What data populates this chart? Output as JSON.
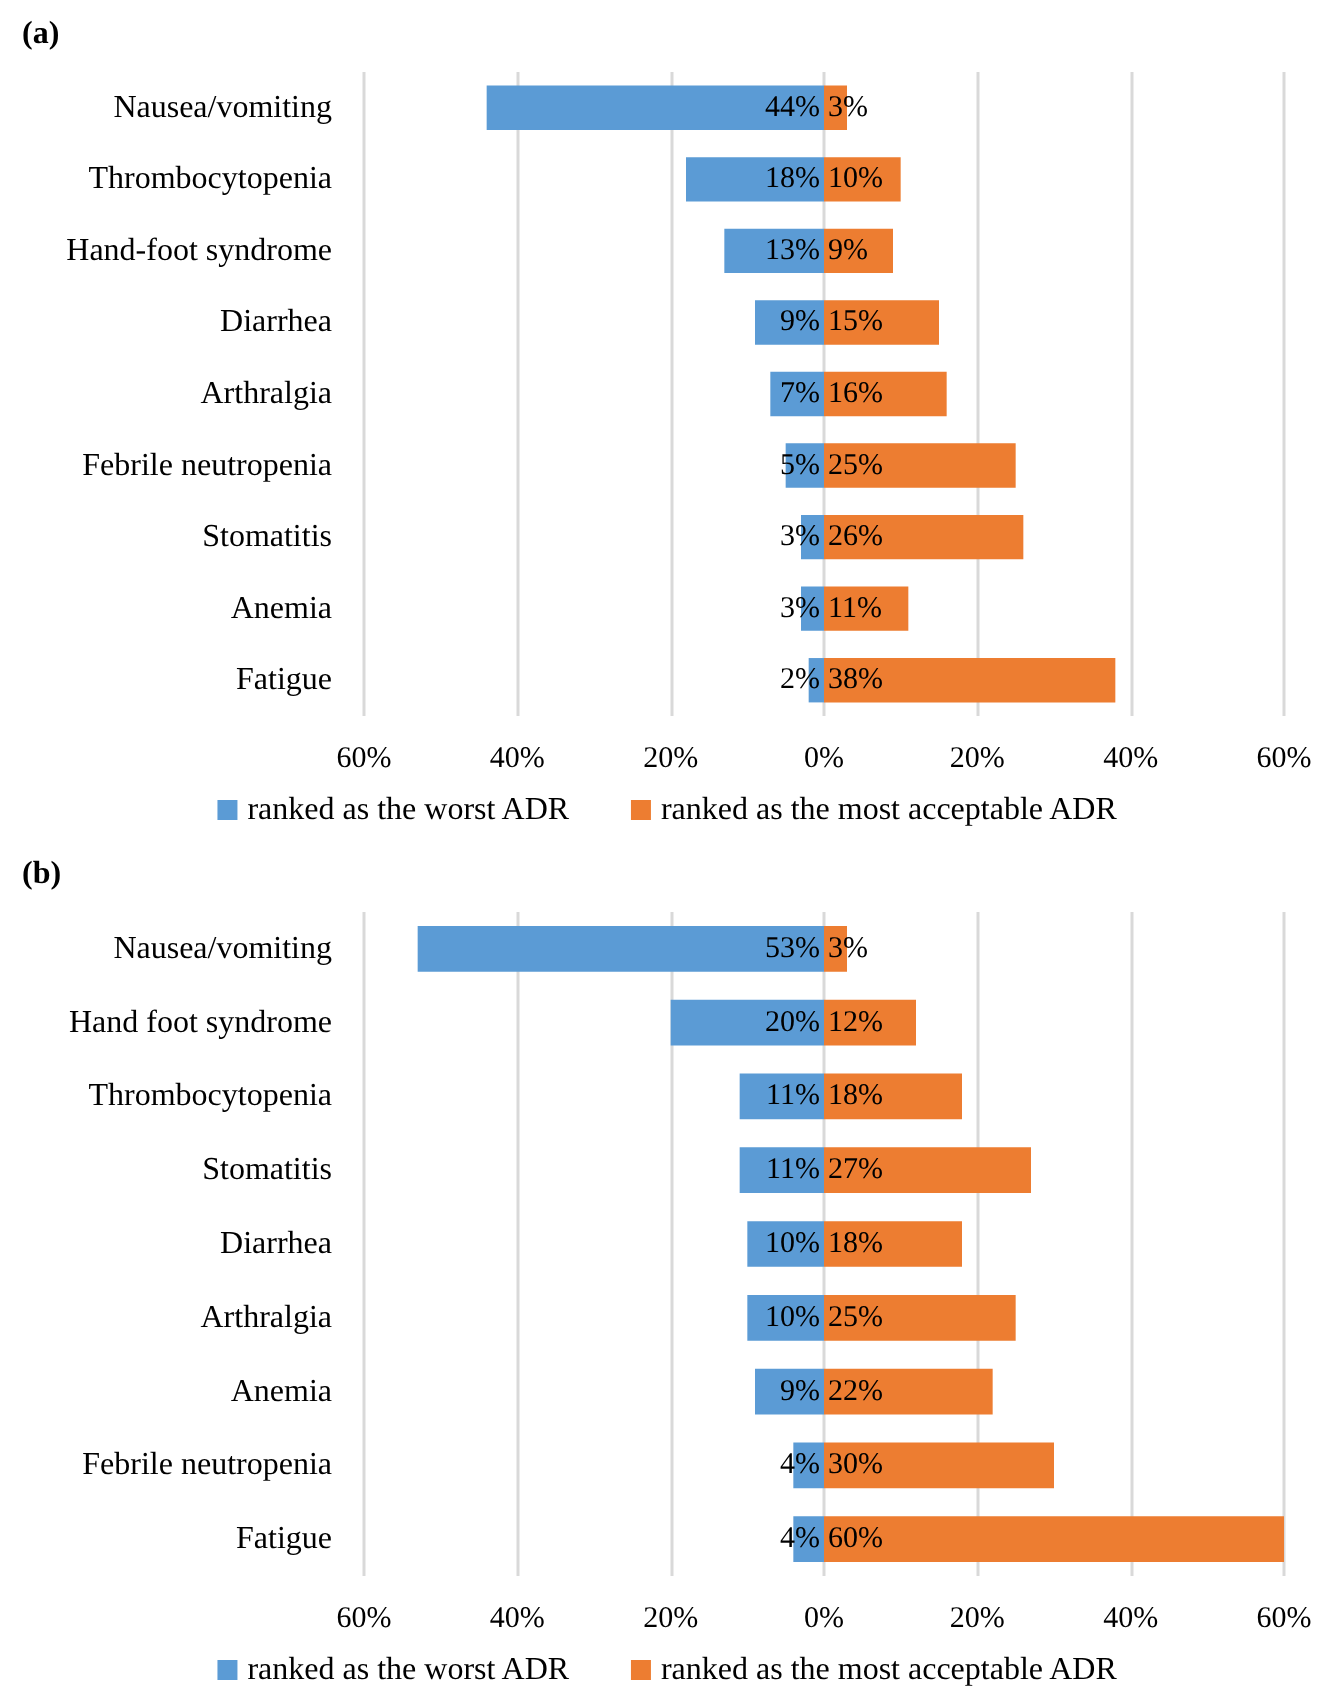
{
  "chart_data": [
    {
      "type": "bar",
      "title": "(a)",
      "orientation": "horizontal",
      "categories": [
        "Nausea/vomiting",
        "Thrombocytopenia",
        "Hand-foot syndrome",
        "Diarrhea",
        "Arthralgia",
        "Febrile neutropenia",
        "Stomatitis",
        "Anemia",
        "Fatigue"
      ],
      "series": [
        {
          "name": "ranked as the worst ADR",
          "color": "#5b9bd5",
          "base": [
            -44,
            -18,
            -13,
            -9,
            -7,
            -5,
            -3,
            -3,
            -2
          ],
          "values": [
            44,
            18,
            13,
            9,
            7,
            5,
            3,
            3,
            2
          ],
          "value_labels": [
            "44%",
            "18%",
            "13%",
            "9%",
            "7%",
            "5%",
            "3%",
            "3%",
            "2%"
          ]
        },
        {
          "name": "ranked as the most acceptable ADR",
          "color": "#ed7d31",
          "values": [
            3,
            10,
            9,
            15,
            16,
            25,
            26,
            11,
            38
          ],
          "value_labels": [
            "3%",
            "10%",
            "9%",
            "15%",
            "16%",
            "25%",
            "26%",
            "11%",
            "38%"
          ]
        }
      ],
      "xlim": [
        -60,
        60
      ],
      "xticks": [
        {
          "value": -60,
          "label": "60%"
        },
        {
          "value": -40,
          "label": "40%"
        },
        {
          "value": -20,
          "label": "20%"
        },
        {
          "value": 0,
          "label": "0%"
        },
        {
          "value": 20,
          "label": "20%"
        },
        {
          "value": 40,
          "label": "40%"
        },
        {
          "value": 60,
          "label": "60%"
        }
      ],
      "grid": "x",
      "legend": "bottom"
    },
    {
      "type": "bar",
      "title": "(b)",
      "orientation": "horizontal",
      "categories": [
        "Nausea/vomiting",
        "Hand foot syndrome",
        "Thrombocytopenia",
        "Stomatitis",
        "Diarrhea",
        "Arthralgia",
        "Anemia",
        "Febrile neutropenia",
        "Fatigue"
      ],
      "series": [
        {
          "name": "ranked as the worst ADR",
          "color": "#5b9bd5",
          "base": [
            -53,
            -20,
            -11,
            -11,
            -10,
            -10,
            -9,
            -4,
            -4
          ],
          "values": [
            53,
            20,
            11,
            11,
            10,
            10,
            9,
            4,
            4
          ],
          "value_labels": [
            "53%",
            "20%",
            "11%",
            "11%",
            "10%",
            "10%",
            "9%",
            "4%",
            "4%"
          ]
        },
        {
          "name": "ranked as the most acceptable ADR",
          "color": "#ed7d31",
          "values": [
            3,
            12,
            18,
            27,
            18,
            25,
            22,
            30,
            60
          ],
          "value_labels": [
            "3%",
            "12%",
            "18%",
            "27%",
            "18%",
            "25%",
            "22%",
            "30%",
            "60%"
          ]
        }
      ],
      "xlim": [
        -60,
        60
      ],
      "xticks": [
        {
          "value": -60,
          "label": "60%"
        },
        {
          "value": -40,
          "label": "40%"
        },
        {
          "value": -20,
          "label": "20%"
        },
        {
          "value": 0,
          "label": "0%"
        },
        {
          "value": 20,
          "label": "20%"
        },
        {
          "value": 40,
          "label": "40%"
        },
        {
          "value": 60,
          "label": "60%"
        }
      ],
      "grid": "x",
      "legend": "bottom"
    }
  ]
}
